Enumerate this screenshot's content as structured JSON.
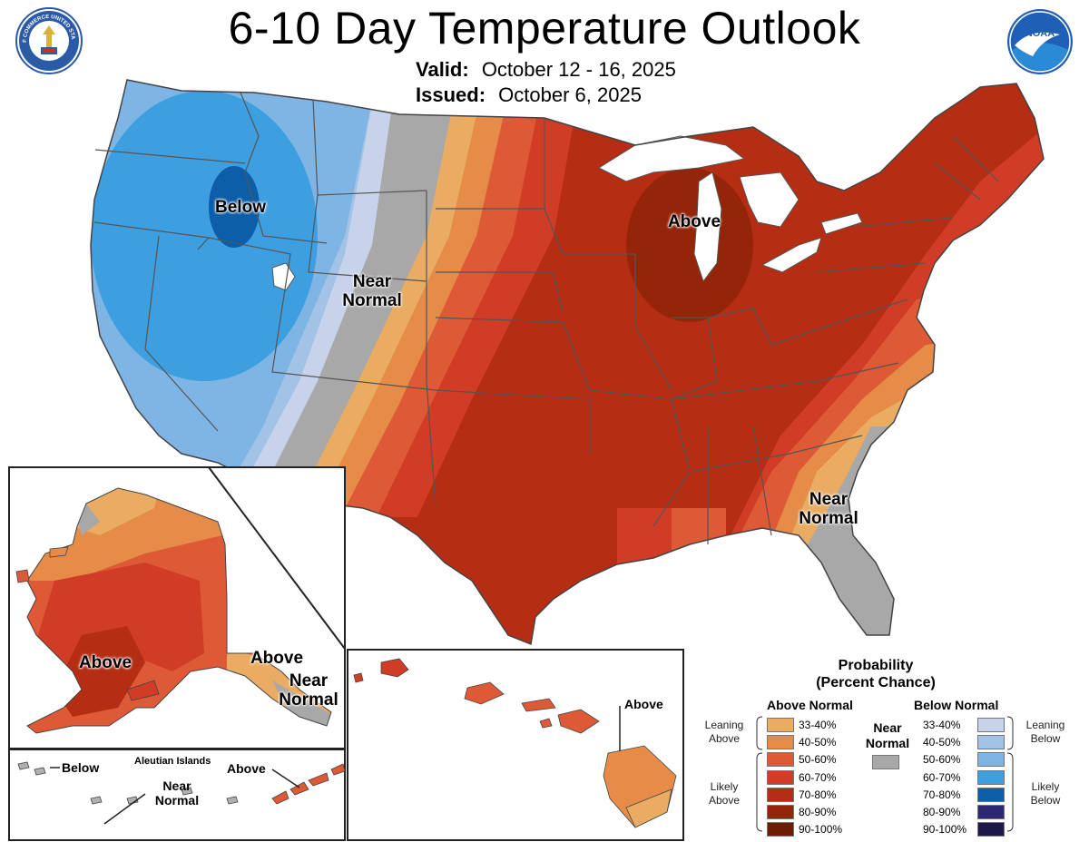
{
  "title": "6-10 Day Temperature Outlook",
  "valid_label": "Valid:",
  "valid_dates": "October 12 - 16, 2025",
  "issued_label": "Issued:",
  "issued_date": "October 6, 2025",
  "logos": {
    "left": "department-of-commerce-seal",
    "left_text": "DEPARTMENT OF COMMERCE UNITED STATES OF AMERICA",
    "right": "noaa-logo",
    "right_text": "NOAA"
  },
  "map_labels": {
    "conus_below": "Below",
    "conus_near_normal_west": "Near\nNormal",
    "conus_above": "Above",
    "conus_near_normal_southeast": "Near\nNormal",
    "alaska_above_west": "Above",
    "alaska_above_southeast": "Above",
    "alaska_near_normal": "Near\nNormal",
    "aleutian_title": "Aleutian Islands",
    "aleutian_below": "Below",
    "aleutian_near_normal": "Near\nNormal",
    "aleutian_above": "Above",
    "hawaii_above": "Above"
  },
  "legend": {
    "title": "Probability\n(Percent Chance)",
    "above_header": "Above Normal",
    "below_header": "Below Normal",
    "near_normal_label": "Near\nNormal",
    "leaning_above": "Leaning\nAbove",
    "likely_above": "Likely\nAbove",
    "leaning_below": "Leaning\nBelow",
    "likely_below": "Likely\nBelow",
    "ranges": [
      "33-40%",
      "40-50%",
      "50-60%",
      "60-70%",
      "70-80%",
      "80-90%",
      "90-100%"
    ],
    "above_colors": [
      "#e9ac62",
      "#e68c48",
      "#de5a36",
      "#d03c25",
      "#b52d12",
      "#952509",
      "#6d1c05"
    ],
    "below_colors": [
      "#c7d3ea",
      "#a2c3e6",
      "#7fb5e4",
      "#3d9ee0",
      "#0d5ea8",
      "#2c2874",
      "#1c1848"
    ],
    "near_normal_color": "#a8a8a8"
  }
}
